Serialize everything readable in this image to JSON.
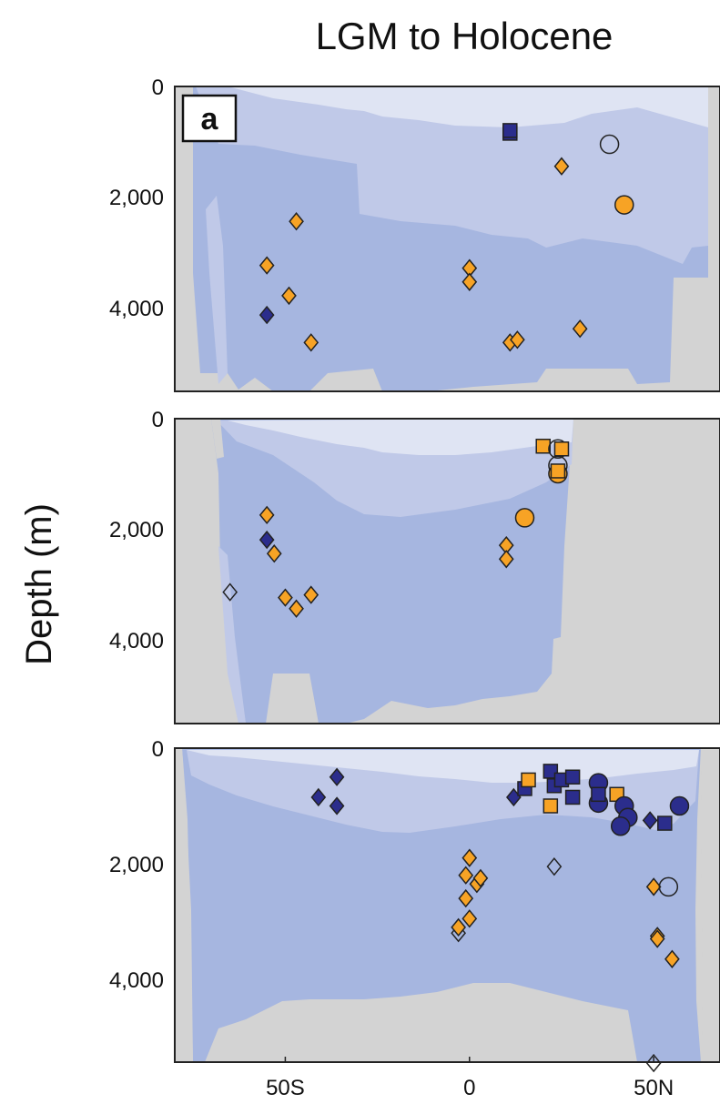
{
  "figure": {
    "title": "LGM to Holocene",
    "ylabel": "Depth (m)",
    "xticks": [
      {
        "value": -50,
        "label": "50S"
      },
      {
        "value": 0,
        "label": "0"
      },
      {
        "value": 50,
        "label": "50N"
      }
    ],
    "yticks": [
      {
        "value": 0,
        "label": "0"
      },
      {
        "value": 2000,
        "label": "2,000"
      },
      {
        "value": 4000,
        "label": "4,000"
      }
    ],
    "colors": {
      "orange": "#f7a325",
      "navy": "#2b2d8c",
      "outline": "#222222",
      "land": "#d3d3d3",
      "water_light": "#dfe4f3",
      "water_mid": "#c0c9e8",
      "water_deep": "#a6b6e0"
    }
  },
  "chart_data": [
    {
      "type": "scatter",
      "panel_label": "a",
      "xlim": [
        -80,
        68
      ],
      "ylim": [
        5500,
        0
      ],
      "points": [
        {
          "x": 11,
          "y": 850,
          "shape": "square",
          "fill": "navy"
        },
        {
          "x": 11,
          "y": 800,
          "shape": "square",
          "fill": "navy"
        },
        {
          "x": 38,
          "y": 1050,
          "shape": "circle",
          "fill": "none"
        },
        {
          "x": 25,
          "y": 1450,
          "shape": "diamond",
          "fill": "orange"
        },
        {
          "x": 42,
          "y": 2150,
          "shape": "circle",
          "fill": "orange"
        },
        {
          "x": -47,
          "y": 2450,
          "shape": "diamond",
          "fill": "orange"
        },
        {
          "x": -55,
          "y": 3250,
          "shape": "diamond",
          "fill": "orange"
        },
        {
          "x": -49,
          "y": 3800,
          "shape": "diamond",
          "fill": "orange"
        },
        {
          "x": -55,
          "y": 4150,
          "shape": "diamond",
          "fill": "navy"
        },
        {
          "x": -43,
          "y": 4650,
          "shape": "diamond",
          "fill": "orange"
        },
        {
          "x": 0,
          "y": 3300,
          "shape": "diamond",
          "fill": "orange"
        },
        {
          "x": 0,
          "y": 3550,
          "shape": "diamond",
          "fill": "orange"
        },
        {
          "x": 11,
          "y": 4650,
          "shape": "diamond",
          "fill": "orange"
        },
        {
          "x": 13,
          "y": 4600,
          "shape": "diamond",
          "fill": "orange"
        },
        {
          "x": 30,
          "y": 4400,
          "shape": "diamond",
          "fill": "orange"
        }
      ]
    },
    {
      "type": "scatter",
      "xlim": [
        -80,
        68
      ],
      "ylim": [
        5500,
        0
      ],
      "points": [
        {
          "x": 20,
          "y": 500,
          "shape": "square",
          "fill": "orange"
        },
        {
          "x": 24,
          "y": 550,
          "shape": "circle",
          "fill": "none"
        },
        {
          "x": 24,
          "y": 850,
          "shape": "circle",
          "fill": "none"
        },
        {
          "x": 24,
          "y": 1000,
          "shape": "circle",
          "fill": "orange"
        },
        {
          "x": 24,
          "y": 950,
          "shape": "square",
          "fill": "orange"
        },
        {
          "x": 25,
          "y": 550,
          "shape": "square",
          "fill": "orange"
        },
        {
          "x": 15,
          "y": 1800,
          "shape": "circle",
          "fill": "orange"
        },
        {
          "x": -55,
          "y": 1750,
          "shape": "diamond",
          "fill": "orange"
        },
        {
          "x": -55,
          "y": 2200,
          "shape": "diamond",
          "fill": "navy"
        },
        {
          "x": -53,
          "y": 2450,
          "shape": "diamond",
          "fill": "orange"
        },
        {
          "x": -65,
          "y": 3150,
          "shape": "diamond",
          "fill": "none"
        },
        {
          "x": -50,
          "y": 3250,
          "shape": "diamond",
          "fill": "orange"
        },
        {
          "x": -47,
          "y": 3450,
          "shape": "diamond",
          "fill": "orange"
        },
        {
          "x": -43,
          "y": 3200,
          "shape": "diamond",
          "fill": "orange"
        },
        {
          "x": 10,
          "y": 2300,
          "shape": "diamond",
          "fill": "orange"
        },
        {
          "x": 10,
          "y": 2550,
          "shape": "diamond",
          "fill": "orange"
        }
      ]
    },
    {
      "type": "scatter",
      "xlim": [
        -80,
        68
      ],
      "ylim": [
        5500,
        0
      ],
      "points": [
        {
          "x": -41,
          "y": 850,
          "shape": "diamond",
          "fill": "navy"
        },
        {
          "x": -36,
          "y": 500,
          "shape": "diamond",
          "fill": "navy"
        },
        {
          "x": -36,
          "y": 1000,
          "shape": "diamond",
          "fill": "navy"
        },
        {
          "x": 12,
          "y": 850,
          "shape": "diamond",
          "fill": "navy"
        },
        {
          "x": 15,
          "y": 700,
          "shape": "square",
          "fill": "navy"
        },
        {
          "x": 16,
          "y": 550,
          "shape": "square",
          "fill": "orange"
        },
        {
          "x": 22,
          "y": 400,
          "shape": "square",
          "fill": "navy"
        },
        {
          "x": 23,
          "y": 650,
          "shape": "square",
          "fill": "navy"
        },
        {
          "x": 25,
          "y": 550,
          "shape": "square",
          "fill": "navy"
        },
        {
          "x": 28,
          "y": 500,
          "shape": "square",
          "fill": "navy"
        },
        {
          "x": 28,
          "y": 850,
          "shape": "square",
          "fill": "navy"
        },
        {
          "x": 22,
          "y": 1000,
          "shape": "square",
          "fill": "orange"
        },
        {
          "x": 35,
          "y": 600,
          "shape": "circle",
          "fill": "navy"
        },
        {
          "x": 35,
          "y": 950,
          "shape": "circle",
          "fill": "navy"
        },
        {
          "x": 35,
          "y": 800,
          "shape": "square",
          "fill": "navy"
        },
        {
          "x": 40,
          "y": 800,
          "shape": "square",
          "fill": "orange"
        },
        {
          "x": 42,
          "y": 1000,
          "shape": "circle",
          "fill": "navy"
        },
        {
          "x": 43,
          "y": 1200,
          "shape": "circle",
          "fill": "navy"
        },
        {
          "x": 41,
          "y": 1350,
          "shape": "circle",
          "fill": "navy"
        },
        {
          "x": 49,
          "y": 1250,
          "shape": "diamond",
          "fill": "navy"
        },
        {
          "x": 53,
          "y": 1300,
          "shape": "square",
          "fill": "navy"
        },
        {
          "x": 57,
          "y": 1000,
          "shape": "circle",
          "fill": "navy"
        },
        {
          "x": 23,
          "y": 2050,
          "shape": "diamond",
          "fill": "none"
        },
        {
          "x": 50,
          "y": 2400,
          "shape": "diamond",
          "fill": "orange"
        },
        {
          "x": 54,
          "y": 2400,
          "shape": "circle",
          "fill": "none"
        },
        {
          "x": 51,
          "y": 3250,
          "shape": "diamond",
          "fill": "orange"
        },
        {
          "x": 51,
          "y": 3300,
          "shape": "diamond",
          "fill": "orange"
        },
        {
          "x": 55,
          "y": 3650,
          "shape": "diamond",
          "fill": "orange"
        },
        {
          "x": 0,
          "y": 1900,
          "shape": "diamond",
          "fill": "orange"
        },
        {
          "x": -1,
          "y": 2200,
          "shape": "diamond",
          "fill": "orange"
        },
        {
          "x": 2,
          "y": 2350,
          "shape": "diamond",
          "fill": "orange"
        },
        {
          "x": 3,
          "y": 2250,
          "shape": "diamond",
          "fill": "orange"
        },
        {
          "x": -1,
          "y": 2600,
          "shape": "diamond",
          "fill": "orange"
        },
        {
          "x": 0,
          "y": 2950,
          "shape": "diamond",
          "fill": "orange"
        },
        {
          "x": -3,
          "y": 3200,
          "shape": "diamond",
          "fill": "none"
        },
        {
          "x": -3,
          "y": 3100,
          "shape": "diamond",
          "fill": "orange"
        },
        {
          "x": 50,
          "y": 5450,
          "shape": "diamond",
          "fill": "none"
        }
      ]
    }
  ]
}
